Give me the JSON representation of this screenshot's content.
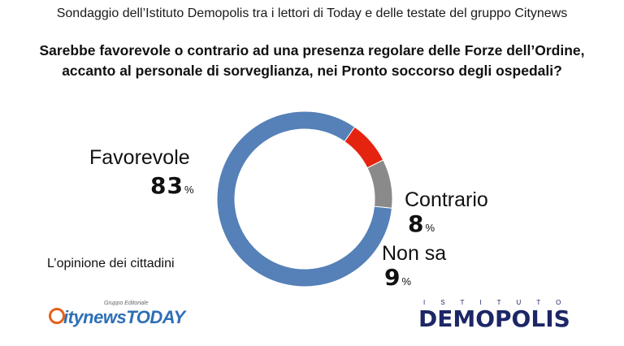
{
  "header": {
    "subtitle": "Sondaggio dell’Istituto Demopolis tra i lettori di Today e delle testate del gruppo Citynews",
    "question_line1": "Sarebbe favorevole o contrario ad una presenza regolare delle Forze dell’Ordine,",
    "question_line2": "accanto al personale di sorveglianza, nei Pronto soccorso degli ospedali?"
  },
  "chart_data": {
    "type": "pie",
    "style": "donut",
    "categories": [
      "Favorevole",
      "Contrario",
      "Non sa"
    ],
    "values": [
      83,
      8,
      9
    ],
    "value_labels": [
      "83",
      "8",
      "9"
    ],
    "unit": "%",
    "colors": [
      "#5580b8",
      "#e52410",
      "#8a8a8a"
    ]
  },
  "note": "L’opinione dei cittadini",
  "logos": {
    "citynews_small": "Gruppo Editoriale",
    "citynews_brand": "itynews",
    "citynews_today": "TODAY",
    "demopolis_small": "ISTITUTO",
    "demopolis_big": "DEMOPOLIS"
  }
}
